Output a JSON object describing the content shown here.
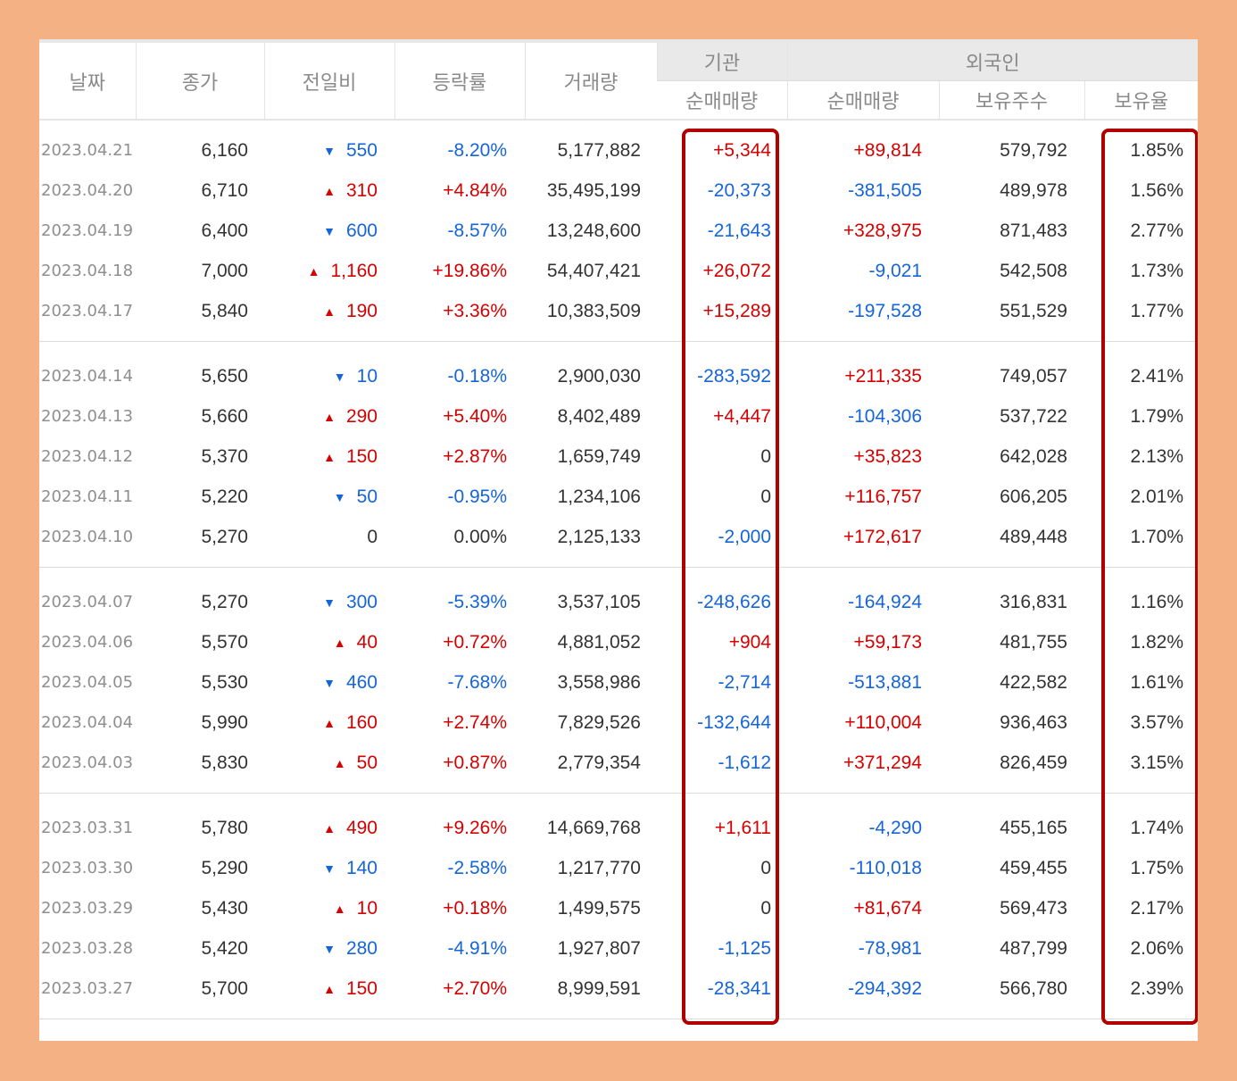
{
  "headers": {
    "date": "날짜",
    "close": "종가",
    "diff": "전일비",
    "rate": "등락률",
    "volume": "거래량",
    "institution_group": "기관",
    "foreign_group": "외국인",
    "inst_net": "순매매량",
    "foreign_net": "순매매량",
    "foreign_holdings": "보유주수",
    "foreign_ratio": "보유율"
  },
  "colors": {
    "up": "#d60000",
    "down": "#1565d8",
    "highlight": "#b00000",
    "frame": "#f4b183"
  },
  "icons": {
    "up": "triangle-up-icon",
    "down": "triangle-down-icon"
  },
  "groups": [
    {
      "rows": [
        {
          "date": "2023.04.21",
          "close": "6,160",
          "dir": "down",
          "diff": "550",
          "rate": "-8.20%",
          "volume": "5,177,882",
          "inst": "+5,344",
          "fnet": "+89,814",
          "fhold": "579,792",
          "fratio": "1.85%"
        },
        {
          "date": "2023.04.20",
          "close": "6,710",
          "dir": "up",
          "diff": "310",
          "rate": "+4.84%",
          "volume": "35,495,199",
          "inst": "-20,373",
          "fnet": "-381,505",
          "fhold": "489,978",
          "fratio": "1.56%"
        },
        {
          "date": "2023.04.19",
          "close": "6,400",
          "dir": "down",
          "diff": "600",
          "rate": "-8.57%",
          "volume": "13,248,600",
          "inst": "-21,643",
          "fnet": "+328,975",
          "fhold": "871,483",
          "fratio": "2.77%"
        },
        {
          "date": "2023.04.18",
          "close": "7,000",
          "dir": "up",
          "diff": "1,160",
          "rate": "+19.86%",
          "volume": "54,407,421",
          "inst": "+26,072",
          "fnet": "-9,021",
          "fhold": "542,508",
          "fratio": "1.73%"
        },
        {
          "date": "2023.04.17",
          "close": "5,840",
          "dir": "up",
          "diff": "190",
          "rate": "+3.36%",
          "volume": "10,383,509",
          "inst": "+15,289",
          "fnet": "-197,528",
          "fhold": "551,529",
          "fratio": "1.77%"
        }
      ]
    },
    {
      "rows": [
        {
          "date": "2023.04.14",
          "close": "5,650",
          "dir": "down",
          "diff": "10",
          "rate": "-0.18%",
          "volume": "2,900,030",
          "inst": "-283,592",
          "fnet": "+211,335",
          "fhold": "749,057",
          "fratio": "2.41%"
        },
        {
          "date": "2023.04.13",
          "close": "5,660",
          "dir": "up",
          "diff": "290",
          "rate": "+5.40%",
          "volume": "8,402,489",
          "inst": "+4,447",
          "fnet": "-104,306",
          "fhold": "537,722",
          "fratio": "1.79%"
        },
        {
          "date": "2023.04.12",
          "close": "5,370",
          "dir": "up",
          "diff": "150",
          "rate": "+2.87%",
          "volume": "1,659,749",
          "inst": "0",
          "fnet": "+35,823",
          "fhold": "642,028",
          "fratio": "2.13%"
        },
        {
          "date": "2023.04.11",
          "close": "5,220",
          "dir": "down",
          "diff": "50",
          "rate": "-0.95%",
          "volume": "1,234,106",
          "inst": "0",
          "fnet": "+116,757",
          "fhold": "606,205",
          "fratio": "2.01%"
        },
        {
          "date": "2023.04.10",
          "close": "5,270",
          "dir": "flat",
          "diff": "0",
          "rate": "0.00%",
          "volume": "2,125,133",
          "inst": "-2,000",
          "fnet": "+172,617",
          "fhold": "489,448",
          "fratio": "1.70%"
        }
      ]
    },
    {
      "rows": [
        {
          "date": "2023.04.07",
          "close": "5,270",
          "dir": "down",
          "diff": "300",
          "rate": "-5.39%",
          "volume": "3,537,105",
          "inst": "-248,626",
          "fnet": "-164,924",
          "fhold": "316,831",
          "fratio": "1.16%"
        },
        {
          "date": "2023.04.06",
          "close": "5,570",
          "dir": "up",
          "diff": "40",
          "rate": "+0.72%",
          "volume": "4,881,052",
          "inst": "+904",
          "fnet": "+59,173",
          "fhold": "481,755",
          "fratio": "1.82%"
        },
        {
          "date": "2023.04.05",
          "close": "5,530",
          "dir": "down",
          "diff": "460",
          "rate": "-7.68%",
          "volume": "3,558,986",
          "inst": "-2,714",
          "fnet": "-513,881",
          "fhold": "422,582",
          "fratio": "1.61%"
        },
        {
          "date": "2023.04.04",
          "close": "5,990",
          "dir": "up",
          "diff": "160",
          "rate": "+2.74%",
          "volume": "7,829,526",
          "inst": "-132,644",
          "fnet": "+110,004",
          "fhold": "936,463",
          "fratio": "3.57%"
        },
        {
          "date": "2023.04.03",
          "close": "5,830",
          "dir": "up",
          "diff": "50",
          "rate": "+0.87%",
          "volume": "2,779,354",
          "inst": "-1,612",
          "fnet": "+371,294",
          "fhold": "826,459",
          "fratio": "3.15%"
        }
      ]
    },
    {
      "rows": [
        {
          "date": "2023.03.31",
          "close": "5,780",
          "dir": "up",
          "diff": "490",
          "rate": "+9.26%",
          "volume": "14,669,768",
          "inst": "+1,611",
          "fnet": "-4,290",
          "fhold": "455,165",
          "fratio": "1.74%"
        },
        {
          "date": "2023.03.30",
          "close": "5,290",
          "dir": "down",
          "diff": "140",
          "rate": "-2.58%",
          "volume": "1,217,770",
          "inst": "0",
          "fnet": "-110,018",
          "fhold": "459,455",
          "fratio": "1.75%"
        },
        {
          "date": "2023.03.29",
          "close": "5,430",
          "dir": "up",
          "diff": "10",
          "rate": "+0.18%",
          "volume": "1,499,575",
          "inst": "0",
          "fnet": "+81,674",
          "fhold": "569,473",
          "fratio": "2.17%"
        },
        {
          "date": "2023.03.28",
          "close": "5,420",
          "dir": "down",
          "diff": "280",
          "rate": "-4.91%",
          "volume": "1,927,807",
          "inst": "-1,125",
          "fnet": "-78,981",
          "fhold": "487,799",
          "fratio": "2.06%"
        },
        {
          "date": "2023.03.27",
          "close": "5,700",
          "dir": "up",
          "diff": "150",
          "rate": "+2.70%",
          "volume": "8,999,591",
          "inst": "-28,341",
          "fnet": "-294,392",
          "fhold": "566,780",
          "fratio": "2.39%"
        }
      ]
    }
  ]
}
